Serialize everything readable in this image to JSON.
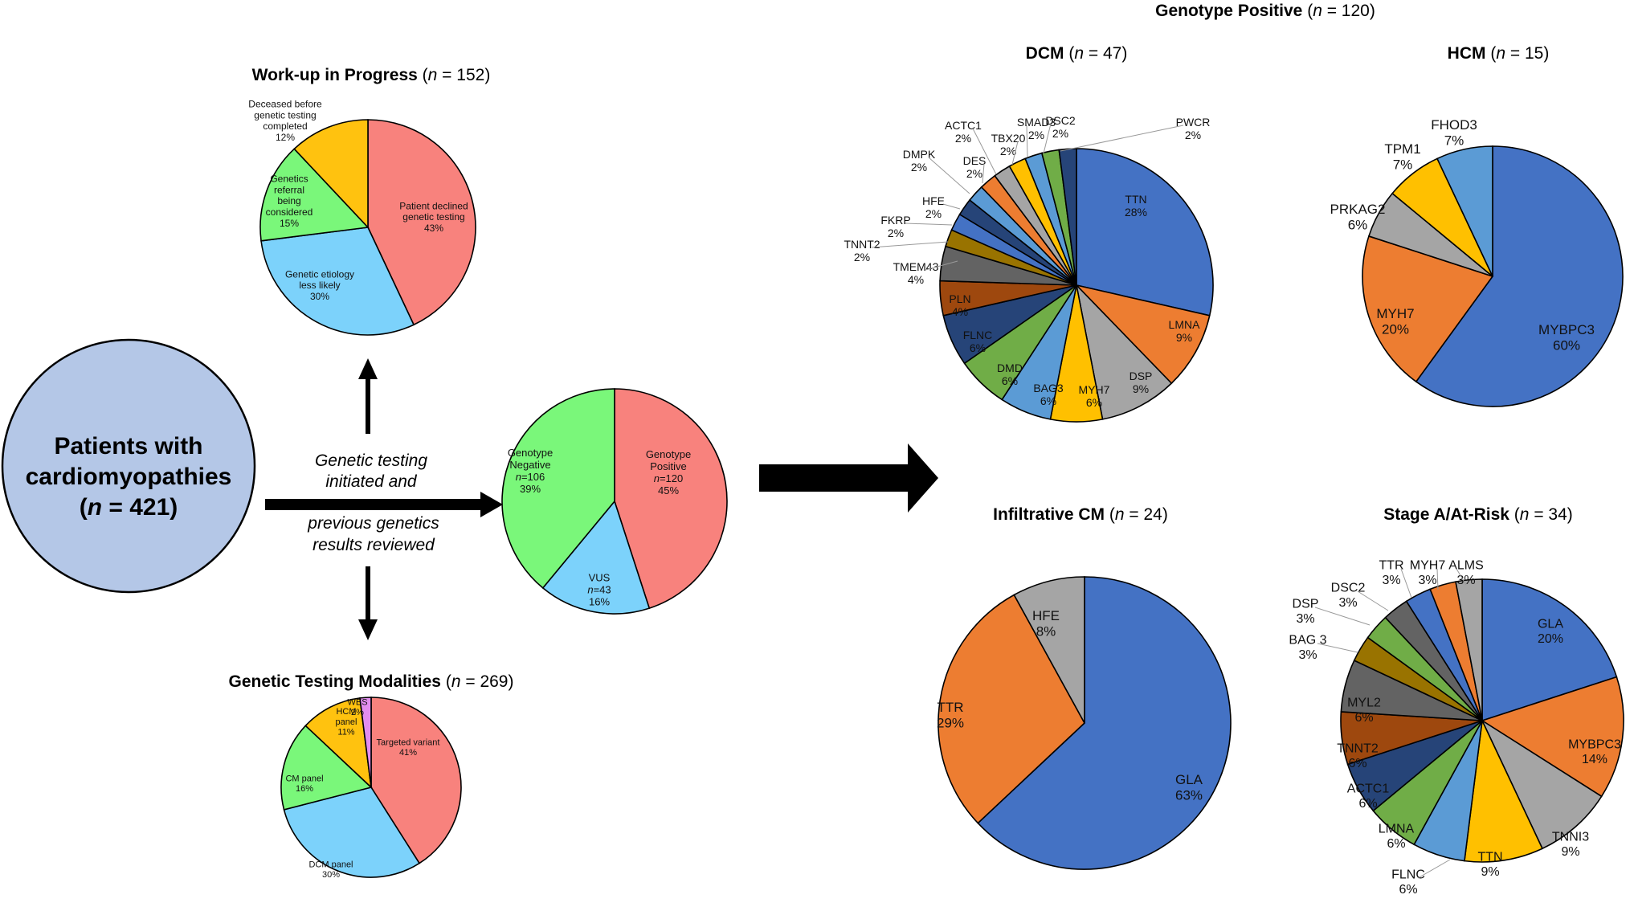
{
  "cohort": {
    "line1": "Patients with",
    "line2": "cardiomyopathies",
    "count_prefix": "(",
    "n_letter": "n",
    "count_text": " = 421)"
  },
  "arrow_text": {
    "upper1": "Genetic testing",
    "upper2": "initiated and",
    "lower1": "previous genetics",
    "lower2": "results reviewed"
  },
  "colors": {
    "red": "#F8827D",
    "green": "#7AF77A",
    "sky": "#7CD2FB",
    "amber": "#FFC20F",
    "violet": "#E28DEF",
    "blue": "#4472C4",
    "orange": "#ED7D31",
    "gray": "#A5A5A5",
    "yellow": "#FFC000",
    "lightblue": "#5B9BD5",
    "lightgreen": "#70AD47",
    "navy": "#264478",
    "brown": "#9E480E",
    "darkgray": "#636363",
    "olive": "#997300",
    "cohort_fill": "#B4C7E7"
  },
  "chart_data": [
    {
      "id": "workup",
      "type": "pie",
      "title": "Work-up in Progress",
      "n_letter": "n",
      "title_n": " = 152",
      "slices": [
        {
          "label": "Patient declined genetic testing",
          "value": 43
        },
        {
          "label": "Genetic etiology less likely",
          "value": 30
        },
        {
          "label": "Genetics referral being considered",
          "value": 15
        },
        {
          "label": "Deceased before genetic testing completed",
          "value": 12
        }
      ]
    },
    {
      "id": "results",
      "type": "pie",
      "title": "",
      "slices": [
        {
          "label": "Genotype Positive",
          "n": "=120",
          "value": 45
        },
        {
          "label": "VUS",
          "n": "=43",
          "value": 16
        },
        {
          "label": "Genotype Negative",
          "n": "=106",
          "value": 39
        }
      ]
    },
    {
      "id": "modalities",
      "type": "pie",
      "title": "Genetic Testing Modalities",
      "n_letter": "n",
      "title_n": " = 269",
      "slices": [
        {
          "label": "Targeted variant",
          "value": 41
        },
        {
          "label": "DCM panel",
          "value": 30
        },
        {
          "label": "CM panel",
          "value": 16
        },
        {
          "label": "HCM panel",
          "value": 11
        },
        {
          "label": "WES",
          "value": 2
        }
      ]
    },
    {
      "id": "dcm",
      "type": "pie",
      "title": "DCM",
      "n_letter": "n",
      "title_n": " = 47",
      "slices": [
        {
          "label": "TTN",
          "value": 28
        },
        {
          "label": "LMNA",
          "value": 9
        },
        {
          "label": "DSP",
          "value": 9
        },
        {
          "label": "MYH7",
          "value": 6
        },
        {
          "label": "BAG3",
          "value": 6
        },
        {
          "label": "DMD",
          "value": 6
        },
        {
          "label": "FLNC",
          "value": 6
        },
        {
          "label": "PLN",
          "value": 4
        },
        {
          "label": "TMEM43",
          "value": 4
        },
        {
          "label": "TNNT2",
          "value": 2
        },
        {
          "label": "FKRP",
          "value": 2
        },
        {
          "label": "HFE",
          "value": 2
        },
        {
          "label": "DMPK",
          "value": 2
        },
        {
          "label": "DES",
          "value": 2
        },
        {
          "label": "ACTC1",
          "value": 2
        },
        {
          "label": "TBX20",
          "value": 2
        },
        {
          "label": "SMAD3",
          "value": 2
        },
        {
          "label": "DSC2",
          "value": 2
        },
        {
          "label": "PWCR",
          "value": 2
        }
      ]
    },
    {
      "id": "hcm",
      "type": "pie",
      "title": "HCM",
      "n_letter": "n",
      "title_n": " = 15",
      "slices": [
        {
          "label": "MYBPC3",
          "value": 60
        },
        {
          "label": "MYH7",
          "value": 20
        },
        {
          "label": "PRKAG2",
          "value": 6
        },
        {
          "label": "TPM1",
          "value": 7
        },
        {
          "label": "FHOD3",
          "value": 7
        }
      ]
    },
    {
      "id": "infiltrative",
      "type": "pie",
      "title": "Infiltrative CM",
      "n_letter": "n",
      "title_n": " = 24",
      "slices": [
        {
          "label": "GLA",
          "value": 63
        },
        {
          "label": "TTR",
          "value": 29
        },
        {
          "label": "HFE",
          "value": 8
        }
      ]
    },
    {
      "id": "stagea",
      "type": "pie",
      "title": "Stage A/At-Risk",
      "n_letter": "n",
      "title_n": " = 34",
      "slices": [
        {
          "label": "GLA",
          "value": 20
        },
        {
          "label": "MYBPC3",
          "value": 14
        },
        {
          "label": "TNNI3",
          "value": 9
        },
        {
          "label": "TTN",
          "value": 9
        },
        {
          "label": "FLNC",
          "value": 6
        },
        {
          "label": "LMNA",
          "value": 6
        },
        {
          "label": "ACTC1",
          "value": 6
        },
        {
          "label": "TNNT2",
          "value": 6
        },
        {
          "label": "MYL2",
          "value": 6
        },
        {
          "label": "BAG 3",
          "value": 3
        },
        {
          "label": "DSP",
          "value": 3
        },
        {
          "label": "DSC2",
          "value": 3
        },
        {
          "label": "TTR",
          "value": 3
        },
        {
          "label": "MYH7",
          "value": 3
        },
        {
          "label": "ALMS",
          "value": 3
        }
      ]
    }
  ],
  "genotype_positive": {
    "title": "Genotype Positive",
    "n_letter": "n",
    "title_n": " = 120"
  }
}
